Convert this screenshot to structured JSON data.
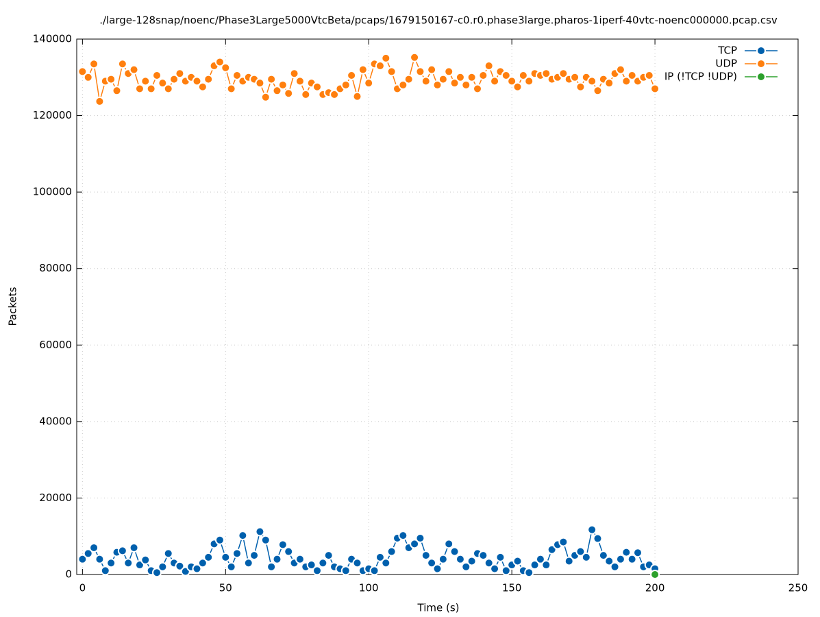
{
  "chart_data": {
    "type": "line",
    "title": "./large-128snap/noenc/Phase3Large5000VtcBeta/pcaps/1679150167-c0.r0.phase3large.pharos-1iperf-40vtc-noenc000000.pcap.csv",
    "xlabel": "Time (s)",
    "ylabel": "Packets",
    "xlim": [
      -2,
      250
    ],
    "xticks": [
      0,
      50,
      100,
      150,
      200,
      250
    ],
    "ylim": [
      0,
      140000
    ],
    "yticks": [
      0,
      20000,
      40000,
      60000,
      80000,
      100000,
      120000,
      140000
    ],
    "grid": true,
    "legend": "top right",
    "x": [
      0,
      2,
      4,
      6,
      8,
      10,
      12,
      14,
      16,
      18,
      20,
      22,
      24,
      26,
      28,
      30,
      32,
      34,
      36,
      38,
      40,
      42,
      44,
      46,
      48,
      50,
      52,
      54,
      56,
      58,
      60,
      62,
      64,
      66,
      68,
      70,
      72,
      74,
      76,
      78,
      80,
      82,
      84,
      86,
      88,
      90,
      92,
      94,
      96,
      98,
      100,
      102,
      104,
      106,
      108,
      110,
      112,
      114,
      116,
      118,
      120,
      122,
      124,
      126,
      128,
      130,
      132,
      134,
      136,
      138,
      140,
      142,
      144,
      146,
      148,
      150,
      152,
      154,
      156,
      158,
      160,
      162,
      164,
      166,
      168,
      170,
      172,
      174,
      176,
      178,
      180,
      182,
      184,
      186,
      188,
      190,
      192,
      194,
      196,
      198,
      200
    ],
    "series": [
      {
        "name": "TCP",
        "color": "#0060ad",
        "values": [
          4000,
          5500,
          7000,
          4000,
          1000,
          3000,
          5800,
          6200,
          3000,
          7000,
          2500,
          3800,
          1000,
          500,
          2000,
          5500,
          3000,
          2200,
          800,
          2000,
          1500,
          3000,
          4500,
          8000,
          9000,
          4500,
          2000,
          5500,
          10200,
          3000,
          5000,
          11200,
          9000,
          2000,
          4000,
          7800,
          6000,
          3000,
          4000,
          2000,
          2500,
          1000,
          3000,
          5000,
          2000,
          1500,
          1000,
          4000,
          3000,
          1000,
          1500,
          1000,
          4500,
          3000,
          6000,
          9500,
          10200,
          7000,
          8000,
          9500,
          5000,
          3000,
          1500,
          4000,
          8000,
          6000,
          4000,
          2000,
          3500,
          5500,
          5000,
          3000,
          1500,
          4500,
          1000,
          2500,
          3500,
          1000,
          500,
          2500,
          4000,
          2500,
          6500,
          7800,
          8500,
          3500,
          5000,
          6000,
          4500,
          11700,
          9400,
          5000,
          3500,
          2000,
          4000,
          5800,
          4000,
          5700,
          2000,
          2500,
          1500
        ]
      },
      {
        "name": "UDP",
        "color": "#ff7f0e",
        "values": [
          131500,
          130000,
          133500,
          123700,
          129000,
          129500,
          126500,
          133500,
          131000,
          132000,
          127000,
          129000,
          127000,
          130500,
          128500,
          127000,
          129500,
          131000,
          129000,
          130000,
          129000,
          127500,
          129500,
          133000,
          134000,
          132500,
          127000,
          130500,
          129000,
          130000,
          129500,
          128500,
          124800,
          129500,
          126500,
          128000,
          125800,
          131000,
          129000,
          125500,
          128500,
          127500,
          125500,
          126000,
          125500,
          127000,
          128000,
          130500,
          125000,
          132000,
          128500,
          133500,
          133000,
          135000,
          131500,
          127000,
          128000,
          129500,
          135200,
          131500,
          129000,
          132000,
          128000,
          129500,
          131500,
          128500,
          130000,
          128000,
          130000,
          127000,
          130500,
          133000,
          129000,
          131500,
          130500,
          129000,
          127500,
          130500,
          129000,
          131000,
          130500,
          131000,
          129500,
          130000,
          131000,
          129500,
          130000,
          127500,
          130000,
          129000,
          126500,
          129500,
          128500,
          131000,
          132000,
          129000,
          130500,
          129000,
          130000,
          130500,
          127000
        ]
      },
      {
        "name": "IP (!TCP  !UDP)",
        "color": "#2ca02c",
        "x": [
          200
        ],
        "values": [
          0
        ]
      }
    ]
  }
}
